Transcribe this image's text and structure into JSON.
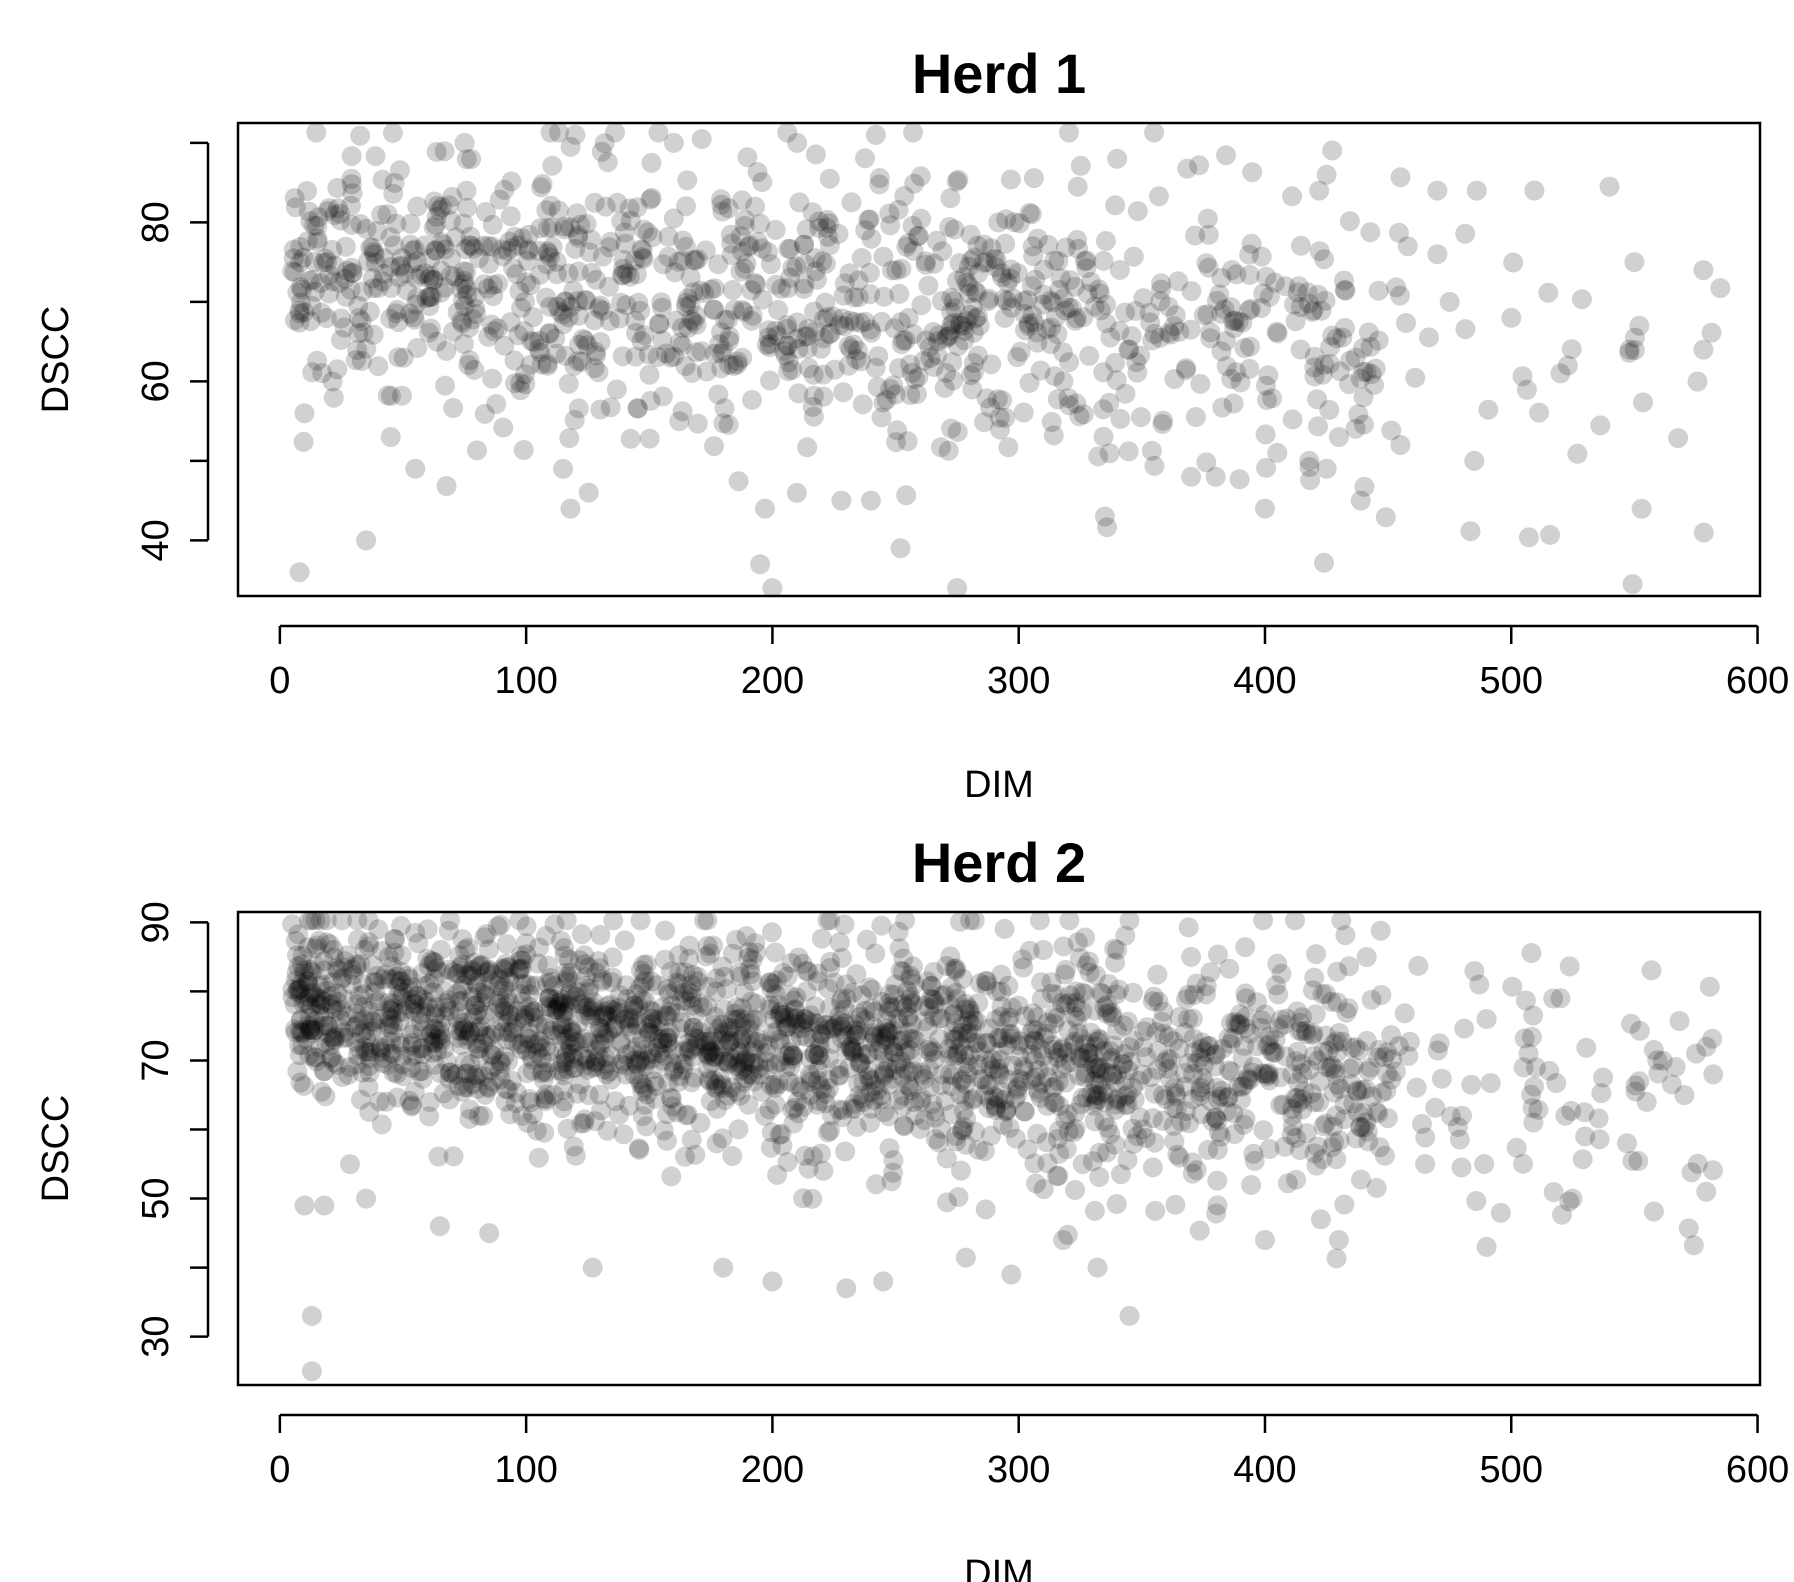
{
  "chart_data": [
    {
      "type": "scatter",
      "title": "Herd 1",
      "xlabel": "DIM",
      "ylabel": "DSCC",
      "xlim": [
        -17,
        601
      ],
      "ylim": [
        33,
        92.5
      ],
      "xticks": [
        0,
        100,
        200,
        300,
        400,
        500,
        600
      ],
      "yticks": [
        40,
        60,
        80
      ],
      "yminor": [
        50,
        70,
        90
      ],
      "point_color": "#000000",
      "point_opacity": 0.18,
      "n_points": 1100,
      "anchor_points": [
        [
          8,
          36
        ],
        [
          35,
          40
        ],
        [
          55,
          49
        ],
        [
          45,
          53
        ],
        [
          118,
          44
        ],
        [
          115,
          49
        ],
        [
          197,
          44
        ],
        [
          195,
          37
        ],
        [
          200,
          34
        ],
        [
          275,
          34
        ],
        [
          252,
          39
        ],
        [
          240,
          45
        ],
        [
          228,
          45
        ],
        [
          335,
          43
        ],
        [
          400,
          44
        ],
        [
          485,
          50
        ],
        [
          425,
          49
        ],
        [
          440,
          58
        ],
        [
          455,
          52
        ],
        [
          475,
          70
        ],
        [
          500,
          68
        ],
        [
          520,
          61
        ],
        [
          523,
          62
        ],
        [
          550,
          75
        ],
        [
          552,
          67
        ],
        [
          548,
          64
        ],
        [
          578,
          74
        ],
        [
          578,
          64
        ],
        [
          470,
          84
        ],
        [
          486,
          84
        ],
        [
          425,
          86
        ],
        [
          422,
          84
        ],
        [
          458,
          77
        ],
        [
          470,
          76
        ],
        [
          120,
          91
        ],
        [
          75,
          90
        ],
        [
          160,
          90
        ],
        [
          242,
          91
        ],
        [
          210,
          90
        ],
        [
          340,
          88
        ],
        [
          380,
          48
        ],
        [
          370,
          48
        ],
        [
          405,
          51
        ],
        [
          418,
          50
        ],
        [
          430,
          53
        ],
        [
          10,
          56
        ]
      ]
    },
    {
      "type": "scatter",
      "title": "Herd 2",
      "xlabel": "DIM",
      "ylabel": "DSCC",
      "xlim": [
        -17,
        601
      ],
      "ylim": [
        23,
        91.5
      ],
      "xticks": [
        0,
        100,
        200,
        300,
        400,
        500,
        600
      ],
      "yticks": [
        30,
        50,
        70,
        90
      ],
      "yminor": [
        40,
        60,
        80
      ],
      "point_color": "#000000",
      "point_opacity": 0.18,
      "n_points": 2100,
      "anchor_points": [
        [
          13,
          25
        ],
        [
          13,
          33
        ],
        [
          10,
          49
        ],
        [
          18,
          49
        ],
        [
          35,
          50
        ],
        [
          65,
          46
        ],
        [
          85,
          45
        ],
        [
          127,
          40
        ],
        [
          180,
          40
        ],
        [
          200,
          38
        ],
        [
          230,
          37
        ],
        [
          245,
          38
        ],
        [
          297,
          39
        ],
        [
          318,
          44
        ],
        [
          332,
          40
        ],
        [
          345,
          33
        ],
        [
          400,
          44
        ],
        [
          430,
          44
        ],
        [
          490,
          43
        ],
        [
          489,
          55
        ],
        [
          490,
          76
        ],
        [
          487,
          81
        ],
        [
          520,
          79
        ],
        [
          522,
          62
        ],
        [
          530,
          59
        ],
        [
          547,
          58
        ],
        [
          555,
          64
        ],
        [
          552,
          67
        ],
        [
          575,
          71
        ],
        [
          582,
          68
        ],
        [
          505,
          69
        ],
        [
          507,
          71
        ],
        [
          510,
          69
        ],
        [
          465,
          55
        ],
        [
          480,
          62
        ],
        [
          40,
          89
        ],
        [
          60,
          89
        ],
        [
          100,
          87
        ],
        [
          310,
          86
        ],
        [
          340,
          86
        ],
        [
          370,
          85
        ],
        [
          405,
          84
        ],
        [
          420,
          82
        ]
      ]
    }
  ]
}
